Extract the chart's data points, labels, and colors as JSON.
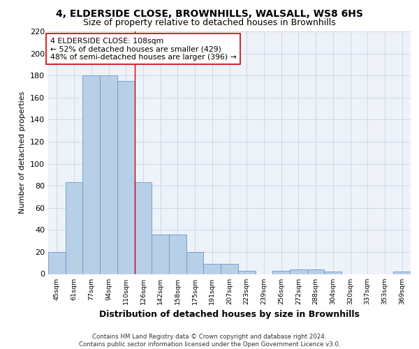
{
  "title1": "4, ELDERSIDE CLOSE, BROWNHILLS, WALSALL, WS8 6HS",
  "title2": "Size of property relative to detached houses in Brownhills",
  "xlabel": "Distribution of detached houses by size in Brownhills",
  "ylabel": "Number of detached properties",
  "categories": [
    "45sqm",
    "61sqm",
    "77sqm",
    "94sqm",
    "110sqm",
    "126sqm",
    "142sqm",
    "158sqm",
    "175sqm",
    "191sqm",
    "207sqm",
    "223sqm",
    "239sqm",
    "256sqm",
    "272sqm",
    "288sqm",
    "304sqm",
    "320sqm",
    "337sqm",
    "353sqm",
    "369sqm"
  ],
  "values": [
    20,
    83,
    180,
    180,
    175,
    83,
    36,
    36,
    20,
    9,
    9,
    3,
    0,
    3,
    4,
    4,
    2,
    0,
    0,
    0,
    2
  ],
  "bar_color": "#b8cfe8",
  "bar_edge_color": "#6699cc",
  "property_line_after_index": 4,
  "property_line_color": "#cc0000",
  "annotation_text": "4 ELDERSIDE CLOSE: 108sqm\n← 52% of detached houses are smaller (429)\n48% of semi-detached houses are larger (396) →",
  "annotation_box_color": "#ffffff",
  "annotation_box_edge_color": "#cc0000",
  "ylim": [
    0,
    220
  ],
  "yticks": [
    0,
    20,
    40,
    60,
    80,
    100,
    120,
    140,
    160,
    180,
    200,
    220
  ],
  "grid_color": "#cdd8ea",
  "background_color": "#eef2f9",
  "footer": "Contains HM Land Registry data © Crown copyright and database right 2024.\nContains public sector information licensed under the Open Government Licence v3.0."
}
